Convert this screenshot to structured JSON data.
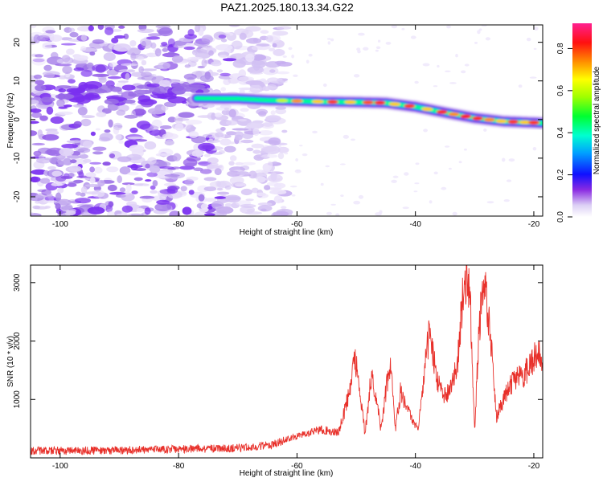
{
  "title": "PAZ1.2025.180.13.34.G22",
  "chart_data": [
    {
      "type": "heatmap",
      "xlabel": "Height of straight line (km)",
      "ylabel": "Frequency (Hz)",
      "xlim": [
        -105,
        -18.5
      ],
      "ylim": [
        -25,
        24.5
      ],
      "xticks": [
        -100,
        -80,
        -60,
        -40,
        -20
      ],
      "yticks": [
        -20,
        -10,
        0,
        10,
        20
      ],
      "colorbar": {
        "label": "Normalized spectral amplitude",
        "range": [
          0,
          0.92
        ],
        "ticks": [
          0.0,
          0.2,
          0.4,
          0.6,
          0.8
        ]
      },
      "ridge": {
        "x": [
          -77,
          -70,
          -65,
          -60,
          -55,
          -50,
          -45,
          -40,
          -35,
          -30,
          -25,
          -20,
          -18.5
        ],
        "y": [
          5.5,
          5.4,
          5.0,
          4.8,
          4.6,
          4.5,
          4.3,
          3.3,
          1.8,
          0.4,
          -0.5,
          -0.8,
          -0.9
        ]
      }
    },
    {
      "type": "line",
      "xlabel": "Height of straight line (km)",
      "ylabel": "SNR (10 * v/v)",
      "xlim": [
        -105,
        -18.5
      ],
      "ylim": [
        0,
        3300
      ],
      "xticks": [
        -100,
        -80,
        -60,
        -40,
        -20
      ],
      "yticks": [
        1000,
        2000,
        3000
      ],
      "color": "#e8302a",
      "series": [
        {
          "x": [
            -105,
            -90,
            -80,
            -70,
            -64,
            -60,
            -56,
            -53,
            -51,
            -50.3,
            -49.5,
            -48.5,
            -47.5,
            -46.6,
            -45.8,
            -45,
            -44.2,
            -43.4,
            -42.5,
            -41,
            -39.5,
            -38.3,
            -37.6,
            -36.8,
            -35.8,
            -34.8,
            -33.8,
            -32.8,
            -32,
            -31.3,
            -30.7,
            -30,
            -29.2,
            -28.3,
            -27.3,
            -26.3,
            -25,
            -23.5,
            -22,
            -20.5,
            -19.5,
            -18.5
          ],
          "y": [
            120,
            130,
            150,
            170,
            230,
            380,
            480,
            430,
            1150,
            1850,
            1200,
            400,
            1400,
            1030,
            480,
            1120,
            1650,
            480,
            1150,
            740,
            480,
            1650,
            2150,
            1600,
            1150,
            1050,
            1250,
            1750,
            2750,
            3200,
            2600,
            450,
            2300,
            3000,
            2000,
            700,
            1050,
            1300,
            1400,
            1600,
            1800,
            1650
          ]
        }
      ]
    }
  ]
}
